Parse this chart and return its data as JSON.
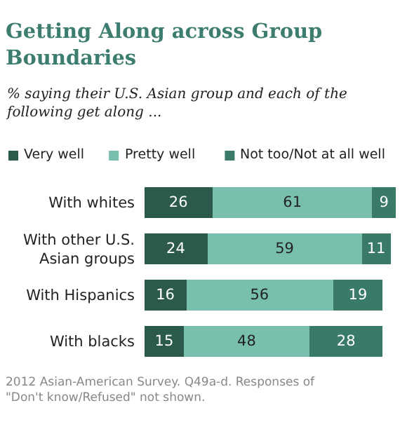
{
  "chart_data": {
    "type": "bar",
    "orientation": "horizontal",
    "stacked": true,
    "title": "Getting Along across Group Boundaries",
    "subtitle": "% saying their U.S. Asian group and each of the following get along ...",
    "categories": [
      "With whites",
      "With other U.S. Asian groups",
      "With Hispanics",
      "With blacks"
    ],
    "series": [
      {
        "name": "Very well",
        "color": "#2b5a4c",
        "values": [
          26,
          24,
          16,
          15
        ]
      },
      {
        "name": "Pretty well",
        "color": "#79bfae",
        "values": [
          61,
          59,
          56,
          48
        ]
      },
      {
        "name": "Not too/Not at all well",
        "color": "#3a7a68",
        "values": [
          9,
          11,
          19,
          28
        ]
      }
    ],
    "data_labels": true,
    "legend": "top",
    "annotations": [
      "2012 Asian-American Survey. Q49a-d. Responses of \"Don't know/Refused\" not shown."
    ]
  }
}
